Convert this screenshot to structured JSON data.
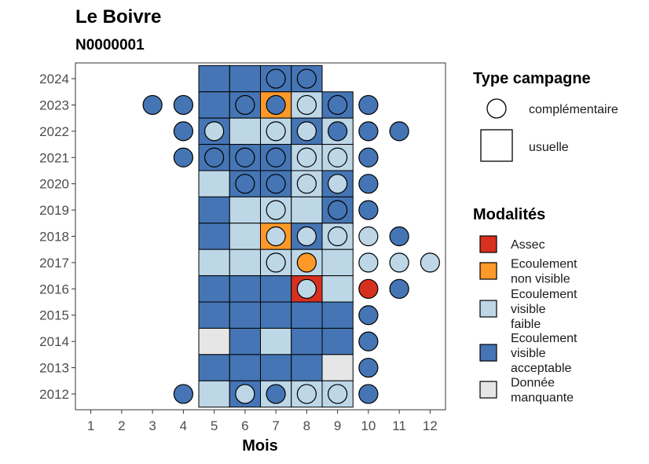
{
  "chart_data": {
    "type": "heatmap",
    "title": "Le Boivre",
    "subtitle": "N0000001",
    "xlabel": "Mois",
    "ylabel": "",
    "x_ticks": [
      1,
      2,
      3,
      4,
      5,
      6,
      7,
      8,
      9,
      10,
      11,
      12
    ],
    "y_ticks": [
      2012,
      2013,
      2014,
      2015,
      2016,
      2017,
      2018,
      2019,
      2020,
      2021,
      2022,
      2023,
      2024
    ],
    "xlim": [
      0.5,
      12.5
    ],
    "ylim": [
      2011.4,
      2024.6
    ],
    "legend_type": {
      "title": "Type campagne",
      "items": [
        {
          "key": "complementaire",
          "label": "complémentaire",
          "shape": "circle"
        },
        {
          "key": "usuelle",
          "label": "usuelle",
          "shape": "square"
        }
      ]
    },
    "legend_modalites": {
      "title": "Modalités",
      "items": [
        {
          "key": "assec",
          "lines": [
            "Assec"
          ],
          "color": "#d7301f"
        },
        {
          "key": "non_visible",
          "lines": [
            "Ecoulement",
            "non visible"
          ],
          "color": "#fe9929"
        },
        {
          "key": "faible",
          "lines": [
            "Ecoulement",
            "visible",
            "faible"
          ],
          "color": "#bdd7e7"
        },
        {
          "key": "acceptable",
          "lines": [
            "Ecoulement",
            "visible",
            "acceptable"
          ],
          "color": "#4575b4"
        },
        {
          "key": "manquante",
          "lines": [
            "Donnée",
            "manquante"
          ],
          "color": "#e6e6e6"
        }
      ]
    },
    "usuelle": [
      {
        "year": 2024,
        "months": {
          "5": "acceptable",
          "6": "acceptable",
          "7": "acceptable",
          "8": "acceptable"
        }
      },
      {
        "year": 2023,
        "months": {
          "5": "acceptable",
          "6": "acceptable",
          "7": "non_visible",
          "8": "faible",
          "9": "acceptable"
        }
      },
      {
        "year": 2022,
        "months": {
          "5": "acceptable",
          "6": "faible",
          "7": "faible",
          "8": "acceptable",
          "9": "faible"
        }
      },
      {
        "year": 2021,
        "months": {
          "5": "acceptable",
          "6": "acceptable",
          "7": "acceptable",
          "8": "faible",
          "9": "faible"
        }
      },
      {
        "year": 2020,
        "months": {
          "5": "faible",
          "6": "acceptable",
          "7": "acceptable",
          "8": "faible",
          "9": "acceptable"
        }
      },
      {
        "year": 2019,
        "months": {
          "5": "acceptable",
          "6": "faible",
          "7": "faible",
          "8": "faible",
          "9": "acceptable"
        }
      },
      {
        "year": 2018,
        "months": {
          "5": "acceptable",
          "6": "faible",
          "7": "non_visible",
          "8": "acceptable",
          "9": "faible"
        }
      },
      {
        "year": 2017,
        "months": {
          "5": "faible",
          "6": "faible",
          "7": "faible",
          "8": "faible",
          "9": "faible"
        }
      },
      {
        "year": 2016,
        "months": {
          "5": "acceptable",
          "6": "acceptable",
          "7": "acceptable",
          "8": "assec",
          "9": "faible"
        }
      },
      {
        "year": 2015,
        "months": {
          "5": "acceptable",
          "6": "acceptable",
          "7": "acceptable",
          "8": "acceptable",
          "9": "acceptable"
        }
      },
      {
        "year": 2014,
        "months": {
          "5": "manquante",
          "6": "acceptable",
          "7": "faible",
          "8": "acceptable",
          "9": "acceptable"
        }
      },
      {
        "year": 2013,
        "months": {
          "5": "acceptable",
          "6": "acceptable",
          "7": "acceptable",
          "8": "acceptable",
          "9": "manquante"
        }
      },
      {
        "year": 2012,
        "months": {
          "5": "faible",
          "6": "acceptable",
          "7": "faible",
          "8": "faible",
          "9": "faible"
        }
      }
    ],
    "complementaire": [
      {
        "year": 2024,
        "months": {
          "7": "acceptable",
          "8": "acceptable"
        }
      },
      {
        "year": 2023,
        "months": {
          "3": "acceptable",
          "4": "acceptable",
          "6": "acceptable",
          "7": "acceptable",
          "8": "faible",
          "9": "acceptable",
          "10": "acceptable"
        }
      },
      {
        "year": 2022,
        "months": {
          "4": "acceptable",
          "5": "faible",
          "7": "faible",
          "8": "faible",
          "9": "acceptable",
          "10": "acceptable",
          "11": "acceptable"
        }
      },
      {
        "year": 2021,
        "months": {
          "4": "acceptable",
          "5": "acceptable",
          "6": "acceptable",
          "7": "acceptable",
          "8": "faible",
          "9": "faible",
          "10": "acceptable"
        }
      },
      {
        "year": 2020,
        "months": {
          "6": "acceptable",
          "7": "acceptable",
          "8": "faible",
          "9": "faible",
          "10": "acceptable"
        }
      },
      {
        "year": 2019,
        "months": {
          "7": "faible",
          "9": "acceptable",
          "10": "acceptable"
        }
      },
      {
        "year": 2018,
        "months": {
          "7": "faible",
          "8": "faible",
          "9": "faible",
          "10": "faible",
          "11": "acceptable"
        }
      },
      {
        "year": 2017,
        "months": {
          "7": "faible",
          "8": "non_visible",
          "10": "faible",
          "11": "faible",
          "12": "faible"
        }
      },
      {
        "year": 2016,
        "months": {
          "8": "faible",
          "10": "assec",
          "11": "acceptable"
        }
      },
      {
        "year": 2015,
        "months": {
          "10": "acceptable"
        }
      },
      {
        "year": 2014,
        "months": {
          "10": "acceptable"
        }
      },
      {
        "year": 2013,
        "months": {
          "10": "acceptable"
        }
      },
      {
        "year": 2012,
        "months": {
          "4": "acceptable",
          "6": "faible",
          "7": "acceptable",
          "8": "faible",
          "9": "faible",
          "10": "acceptable"
        }
      }
    ]
  }
}
